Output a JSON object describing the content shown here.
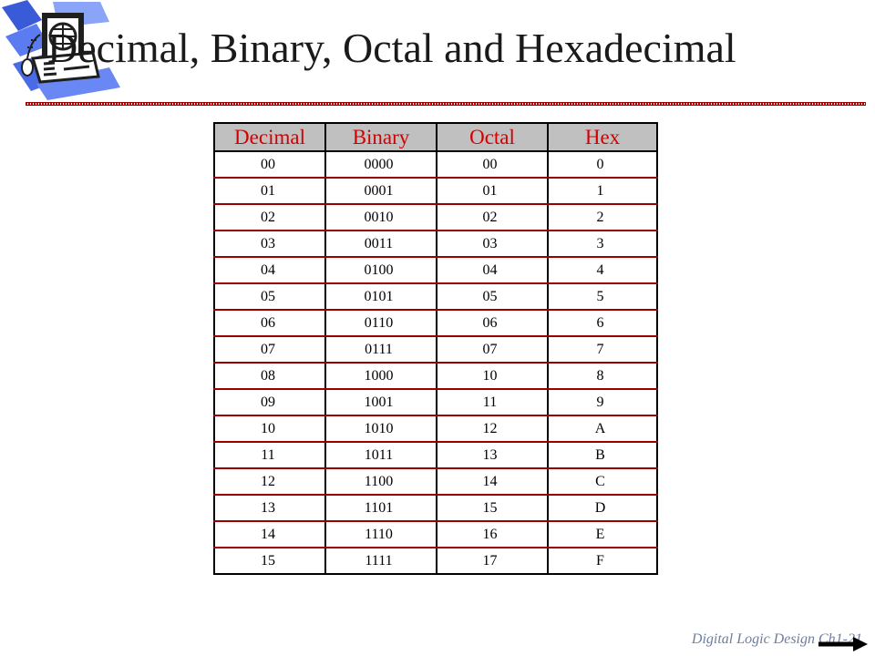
{
  "slide": {
    "title": "Decimal, Binary, Octal and Hexadecimal",
    "footer": "Digital Logic Design Ch1-21"
  },
  "icons": {
    "clipart": "computer-clipart-icon",
    "next": "next-arrow-icon"
  },
  "colors": {
    "header_bg": "#c0c0c0",
    "header_text": "#d40000",
    "rule": "#c00000",
    "footer_text": "#6d7ea0"
  },
  "table": {
    "headers": [
      "Decimal",
      "Binary",
      "Octal",
      "Hex"
    ],
    "rows": [
      [
        "00",
        "0000",
        "00",
        "0"
      ],
      [
        "01",
        "0001",
        "01",
        "1"
      ],
      [
        "02",
        "0010",
        "02",
        "2"
      ],
      [
        "03",
        "0011",
        "03",
        "3"
      ],
      [
        "04",
        "0100",
        "04",
        "4"
      ],
      [
        "05",
        "0101",
        "05",
        "5"
      ],
      [
        "06",
        "0110",
        "06",
        "6"
      ],
      [
        "07",
        "0111",
        "07",
        "7"
      ],
      [
        "08",
        "1000",
        "10",
        "8"
      ],
      [
        "09",
        "1001",
        "11",
        "9"
      ],
      [
        "10",
        "1010",
        "12",
        "A"
      ],
      [
        "11",
        "1011",
        "13",
        "B"
      ],
      [
        "12",
        "1100",
        "14",
        "C"
      ],
      [
        "13",
        "1101",
        "15",
        "D"
      ],
      [
        "14",
        "1110",
        "16",
        "E"
      ],
      [
        "15",
        "1111",
        "17",
        "F"
      ]
    ]
  }
}
